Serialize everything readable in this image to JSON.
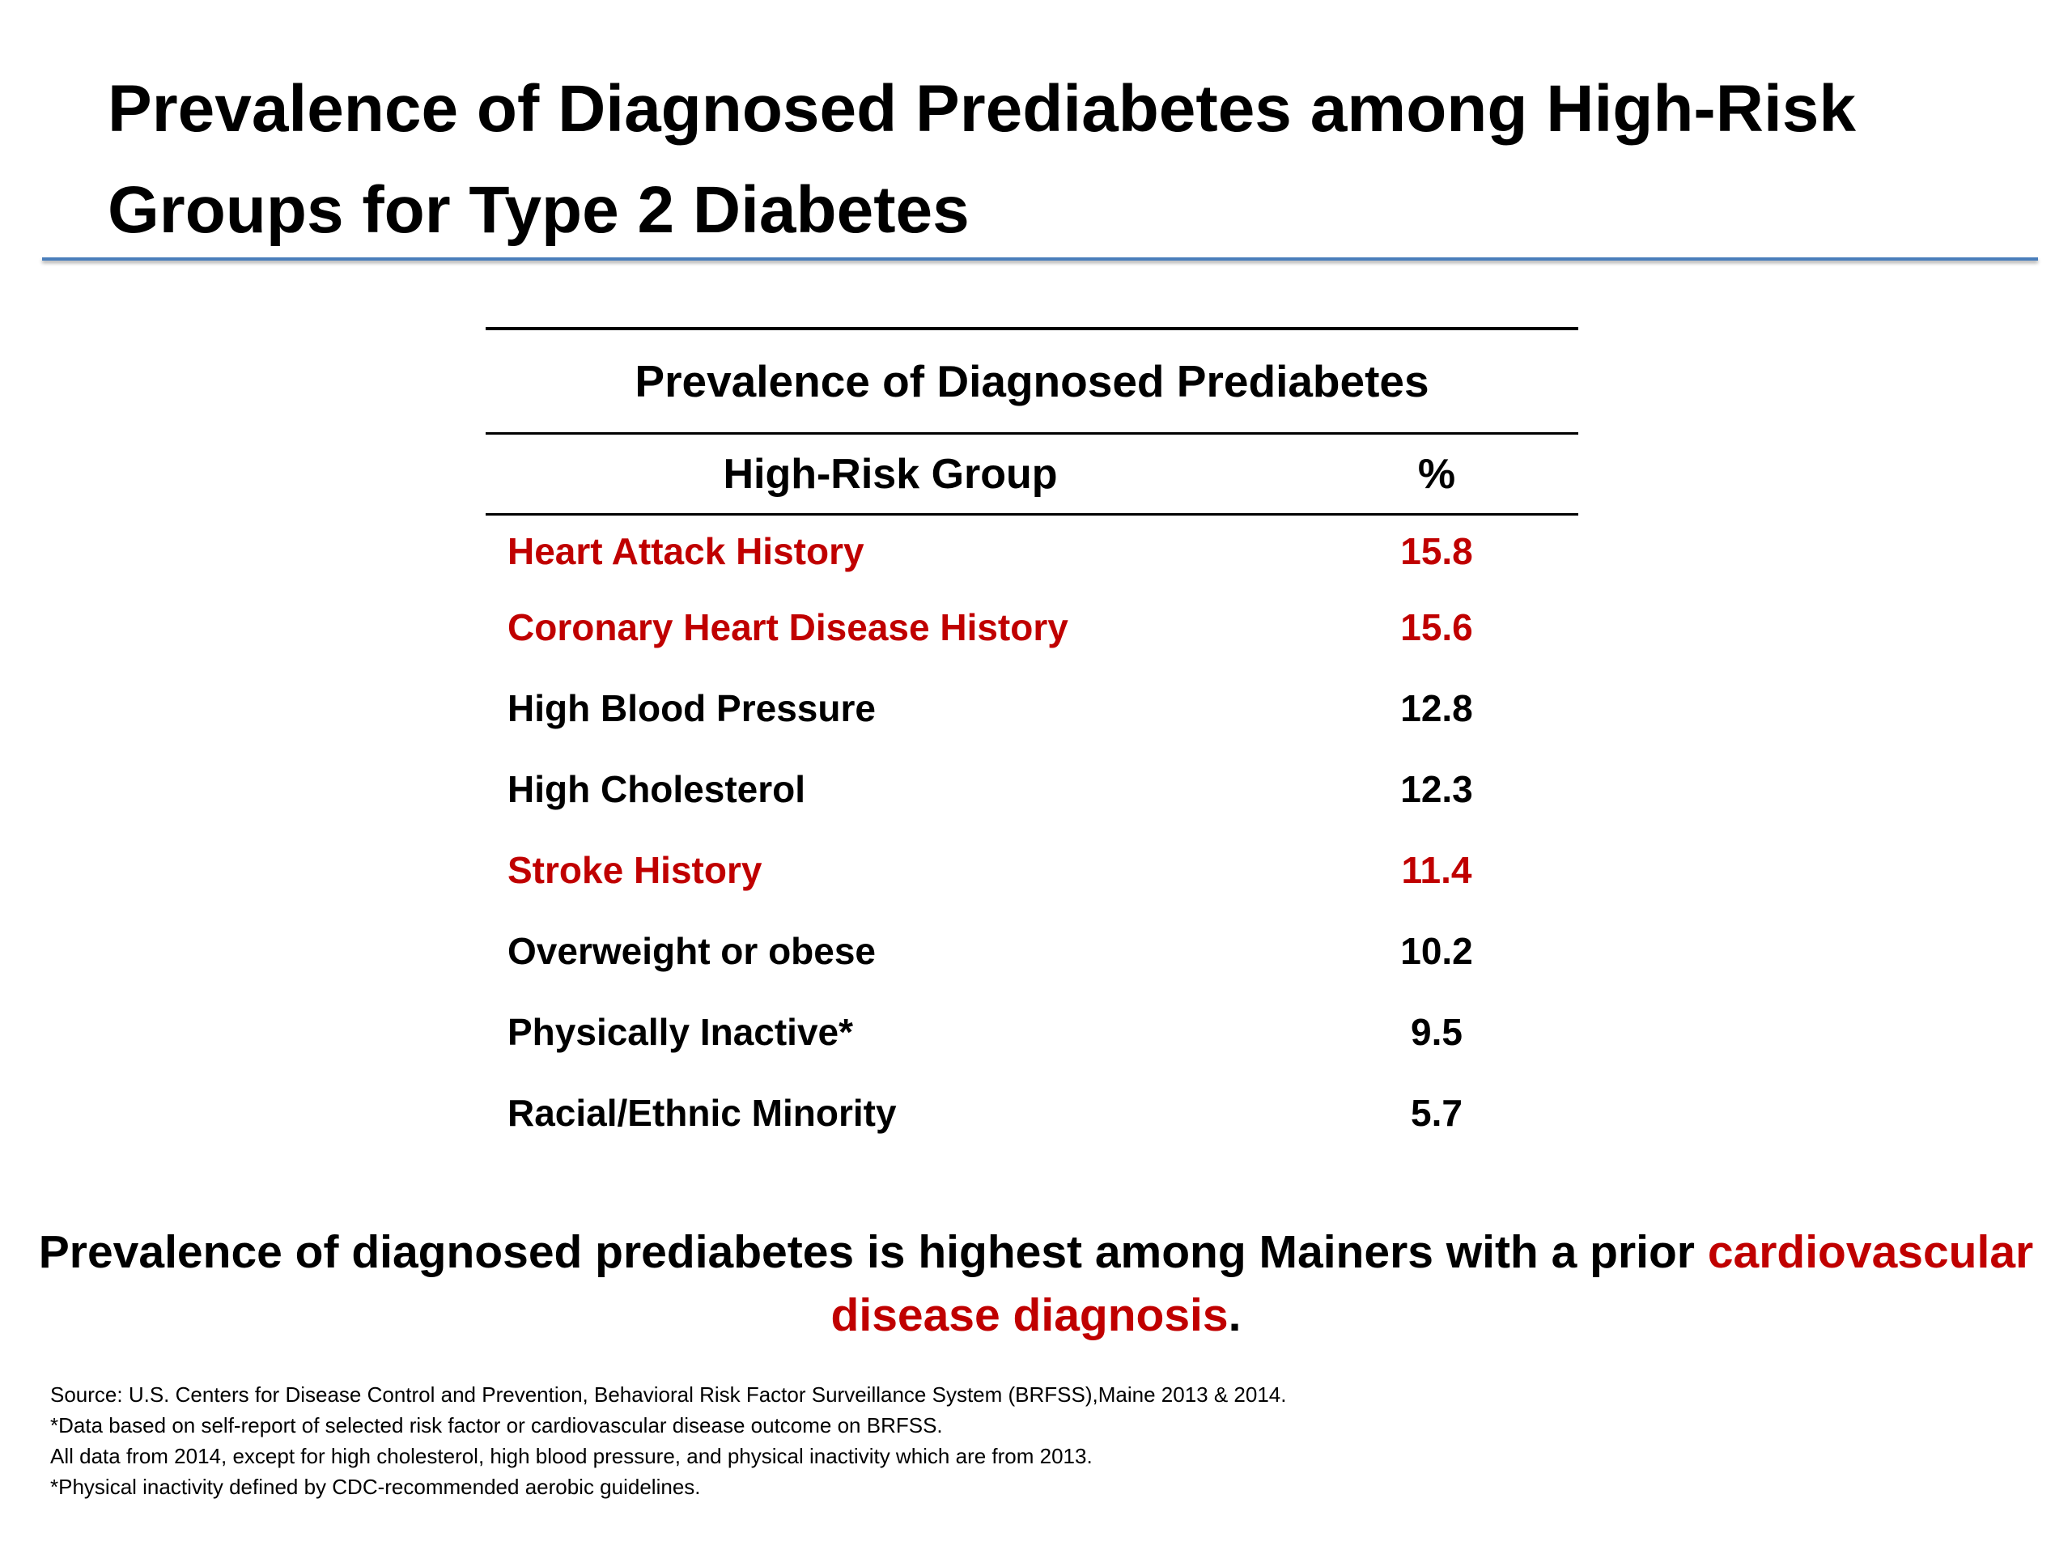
{
  "title": "Prevalence of Diagnosed Prediabetes among High-Risk Groups for Type 2 Diabetes",
  "table": {
    "caption": "Prevalence of Diagnosed Prediabetes",
    "headers": [
      "High-Risk Group",
      "%"
    ],
    "highlight_color": "#c00000",
    "rows": [
      {
        "group": "Heart Attack History",
        "percent": "15.8",
        "highlight": true
      },
      {
        "group": "Coronary Heart Disease History",
        "percent": "15.6",
        "highlight": true
      },
      {
        "group": "High Blood Pressure",
        "percent": "12.8",
        "highlight": false
      },
      {
        "group": "High Cholesterol",
        "percent": "12.3",
        "highlight": false
      },
      {
        "group": "Stroke History",
        "percent": "11.4",
        "highlight": true
      },
      {
        "group": "Overweight or obese",
        "percent": "10.2",
        "highlight": false
      },
      {
        "group": "Physically Inactive*",
        "percent": "9.5",
        "highlight": false
      },
      {
        "group": "Racial/Ethnic Minority",
        "percent": "5.7",
        "highlight": false
      }
    ]
  },
  "takeaway": {
    "text": "Prevalence of diagnosed prediabetes is highest among Mainers with a prior ",
    "emphasis": "cardiovascular disease diagnosis",
    "end": "."
  },
  "footnotes": [
    "Source: U.S. Centers for Disease Control and Prevention, Behavioral Risk Factor Surveillance System (BRFSS),Maine 2013 & 2014.",
    "*Data based on self-report of selected risk factor or cardiovascular disease outcome on BRFSS.",
    "All data from 2014, except for high cholesterol, high blood pressure, and physical inactivity which are from 2013.",
    "*Physical inactivity defined by CDC-recommended aerobic guidelines."
  ],
  "colors": {
    "title_rule": "#4a7ebb",
    "highlight": "#c00000"
  }
}
